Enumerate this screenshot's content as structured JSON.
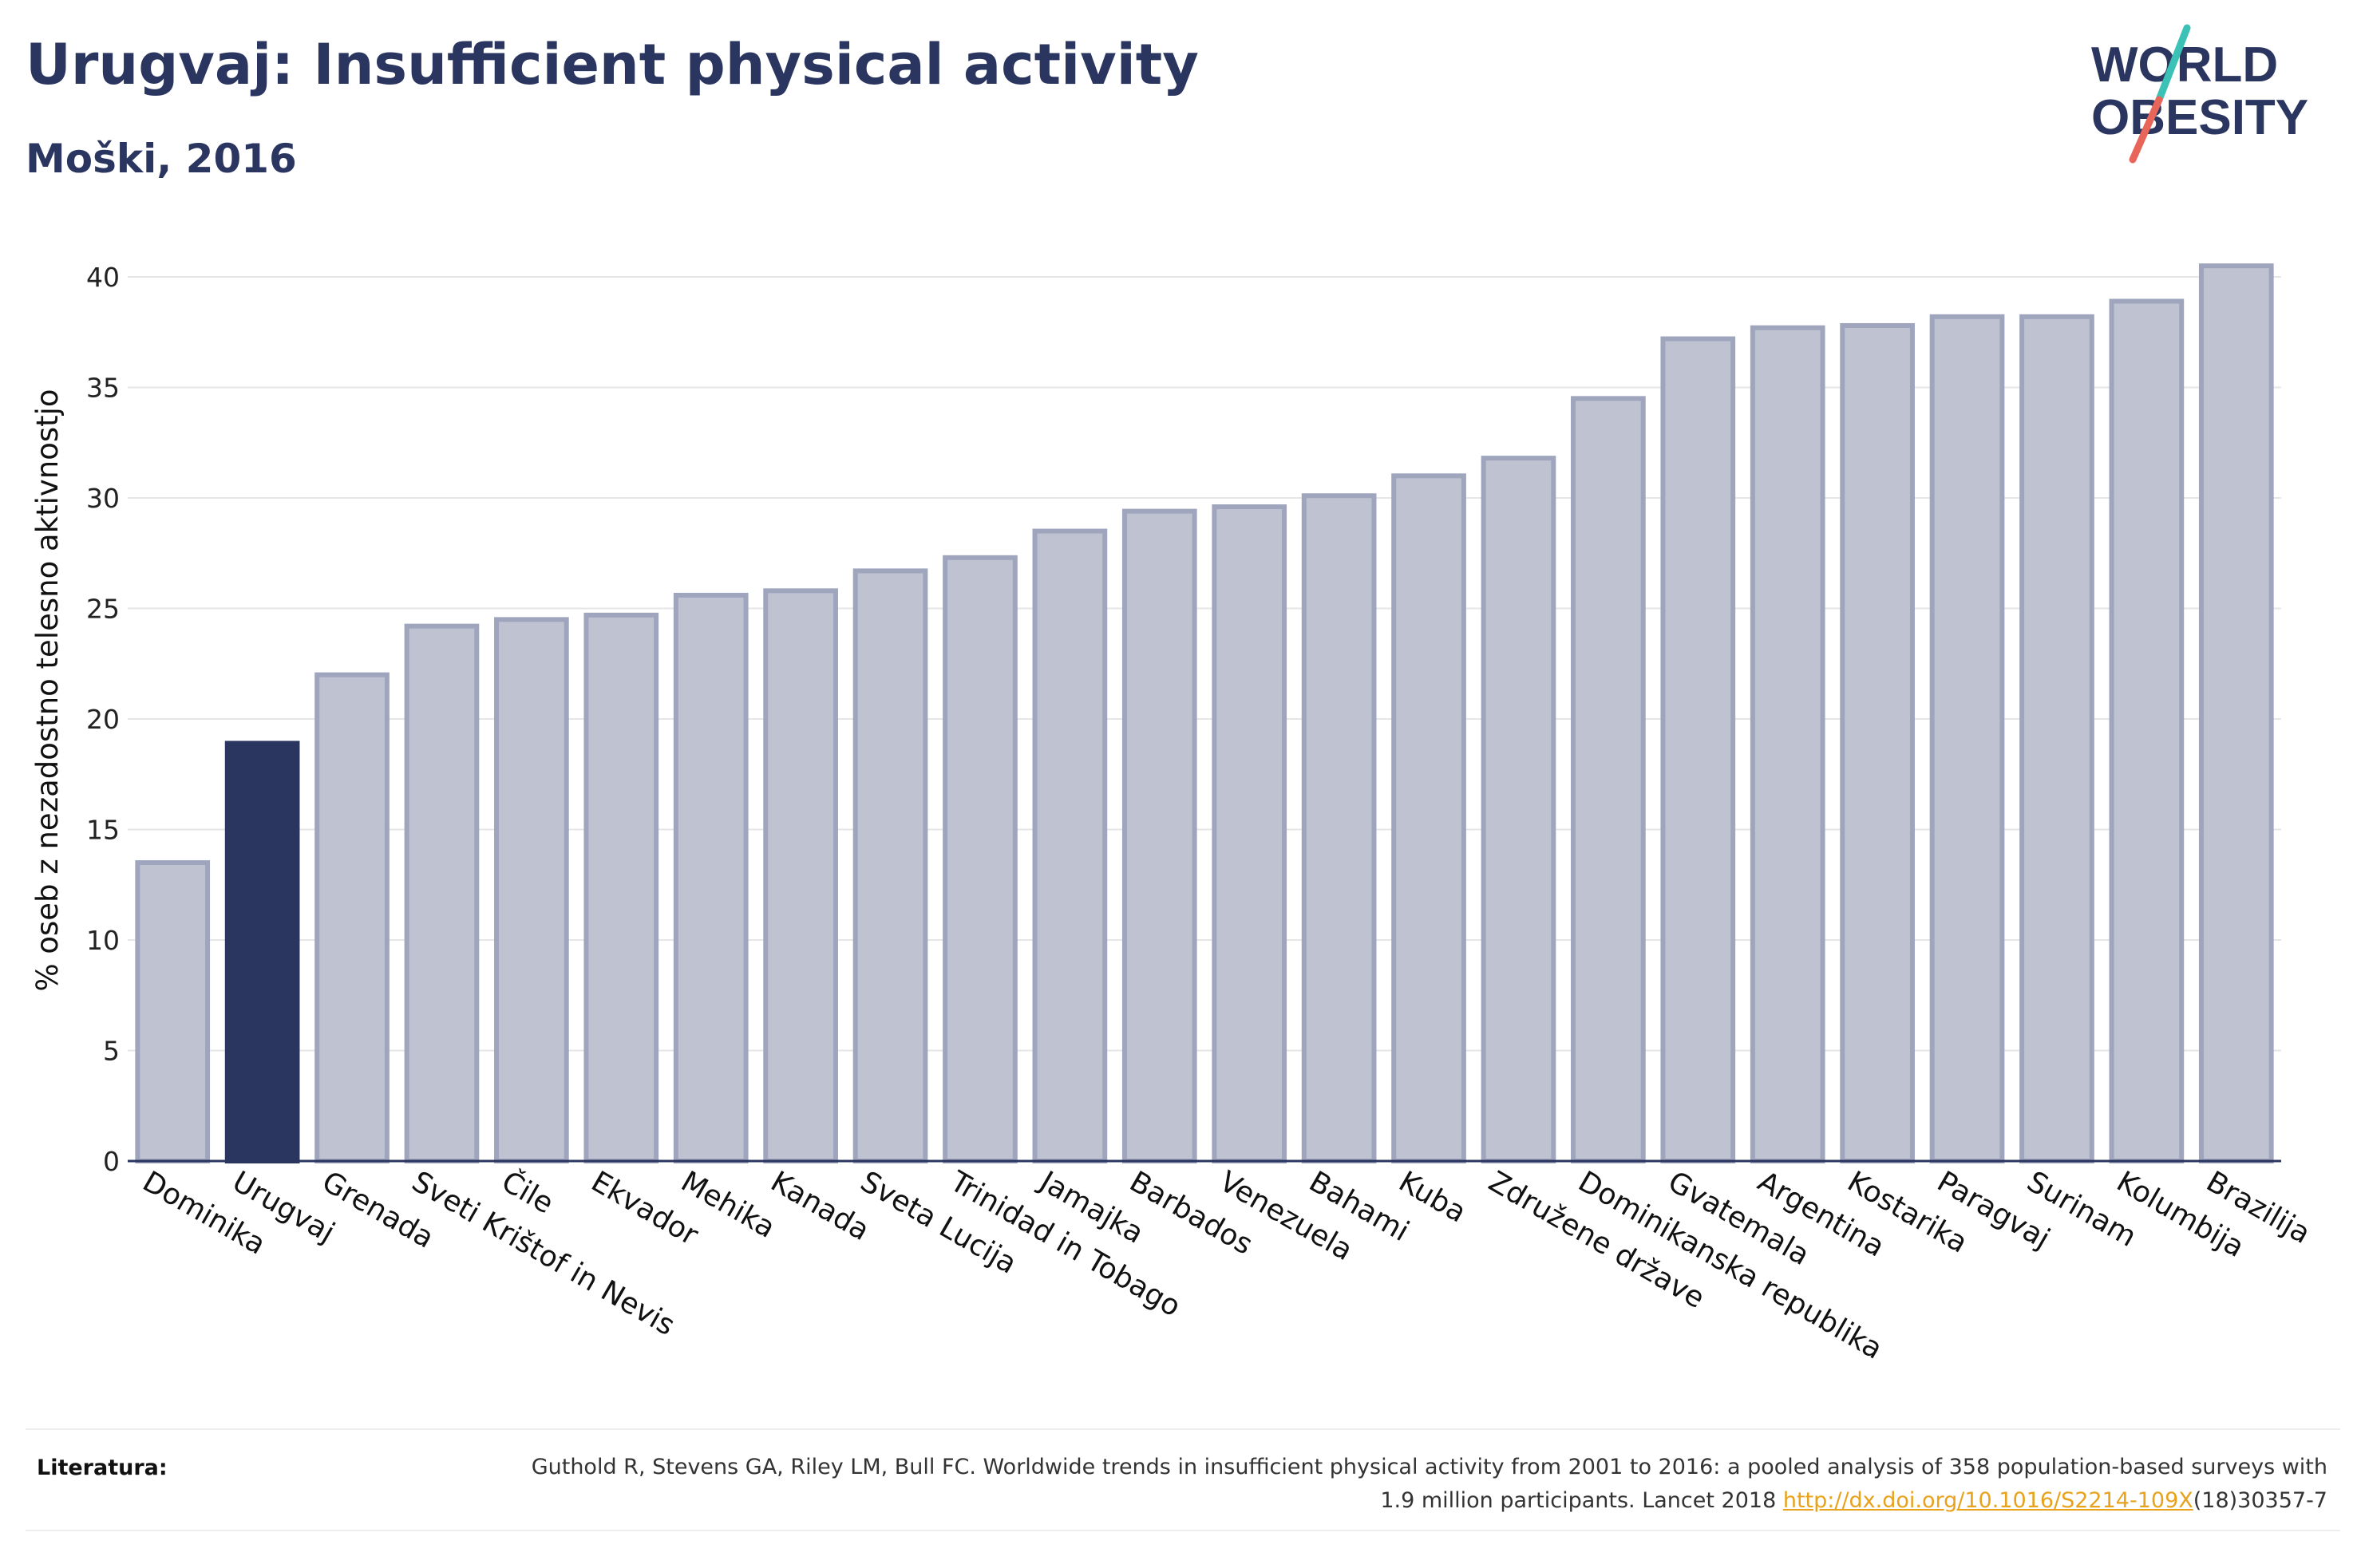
{
  "header": {
    "title": "Urugvaj: Insufficient physical activity",
    "subtitle": "Moški, 2016"
  },
  "logo": {
    "line1": "WORLD",
    "line2": "OBESITY",
    "colors": {
      "text": "#2a3560",
      "slash_top": "#3cc1b7",
      "slash_bottom": "#e8655a"
    }
  },
  "colors": {
    "highlight": "#2a3560",
    "bar_fill": "#bfc3d1",
    "bar_stroke": "#9ea5bd",
    "grid": "#e6e6e6",
    "link": "#e8a21c"
  },
  "chart_data": {
    "type": "bar",
    "ylabel": "% oseb z nezadostno telesno aktivnostjo",
    "xlabel": "",
    "ylim": [
      0,
      42
    ],
    "yticks": [
      0,
      5,
      10,
      15,
      20,
      25,
      30,
      35,
      40
    ],
    "grid": true,
    "highlight": "Urugvaj",
    "categories": [
      "Dominika",
      "Urugvaj",
      "Grenada",
      "Sveti Krištof in Nevis",
      "Čile",
      "Ekvador",
      "Mehika",
      "Kanada",
      "Sveta Lucija",
      "Trinidad in Tobago",
      "Jamajka",
      "Barbados",
      "Venezuela",
      "Bahami",
      "Kuba",
      "Združene države",
      "Dominikanska republika",
      "Gvatemala",
      "Argentina",
      "Kostarika",
      "Paragvaj",
      "Surinam",
      "Kolumbija",
      "Brazilija"
    ],
    "values": [
      13.5,
      18.9,
      22.0,
      24.2,
      24.5,
      24.7,
      25.6,
      25.8,
      26.7,
      27.3,
      28.5,
      29.4,
      29.6,
      30.1,
      31.0,
      31.8,
      34.5,
      37.2,
      37.7,
      37.8,
      38.2,
      38.2,
      38.9,
      40.5
    ]
  },
  "footer": {
    "label": "Literatura:",
    "text_before_link": "Guthold R, Stevens GA, Riley LM, Bull FC. Worldwide trends in insufficient physical activity from 2001 to 2016: a pooled analysis of 358 population-based surveys with 1.9 million participants. Lancet 2018 ",
    "link": "http://dx.doi.org/10.1016/S2214-109X",
    "text_after_link": "(18)30357-7"
  }
}
